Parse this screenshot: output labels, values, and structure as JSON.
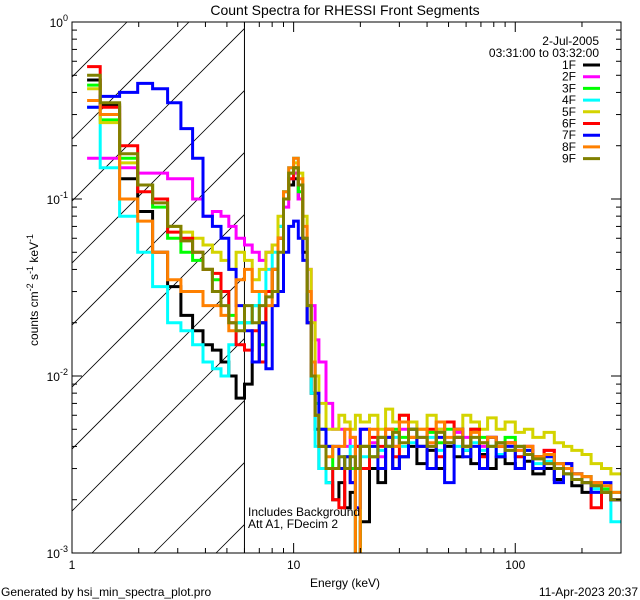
{
  "chart_data": {
    "type": "line",
    "title": "Count Spectra for RHESSI Front Segments",
    "xlabel": "Energy (keV)",
    "ylabel_parts": [
      "counts cm",
      "-2",
      " s",
      "-1",
      " keV",
      "-1"
    ],
    "xscale": "log",
    "yscale": "log",
    "xlim": [
      1,
      300
    ],
    "ylim": [
      0.001,
      1
    ],
    "x_tick_labels": [
      "1",
      "10",
      "100"
    ],
    "x_tick_values": [
      1,
      10,
      100
    ],
    "y_tick_values": [
      1,
      0.1,
      0.01,
      0.001
    ],
    "y_tick_labels": [
      {
        "base": "10",
        "exp": "0"
      },
      {
        "base": "10",
        "exp": "-1"
      },
      {
        "base": "10",
        "exp": "-2"
      },
      {
        "base": "10",
        "exp": "-3"
      }
    ],
    "date": "2-Jul-2005",
    "time_range": "03:31:00 to 03:32:00",
    "annotations": [
      "Includes Background",
      "Att A1, FDecim 2"
    ],
    "hatched_region_below_keV": 6,
    "legend_position": "top-right",
    "energy_edges": [
      1.17,
      1.34,
      1.64,
      1.98,
      2.31,
      2.7,
      3.1,
      3.5,
      3.9,
      4.3,
      4.7,
      5.1,
      5.5,
      6.0,
      6.5,
      7.0,
      7.5,
      8.0,
      8.5,
      9.0,
      9.5,
      10.0,
      10.5,
      11.0,
      11.5,
      12.0,
      12.5,
      13.0,
      14.0,
      15.0,
      16.0,
      17.0,
      18.0,
      19.0,
      20.0,
      22,
      24,
      26,
      28,
      30,
      33,
      36,
      40,
      44,
      48,
      53,
      58,
      63,
      69,
      75,
      82,
      90,
      100,
      110,
      120,
      135,
      150,
      165,
      180,
      200,
      220,
      245,
      270,
      300
    ],
    "series": [
      {
        "name": "1F",
        "color": "#000000",
        "values": [
          0.47,
          0.34,
          0.13,
          0.085,
          0.05,
          0.032,
          0.022,
          0.018,
          0.015,
          0.014,
          0.012,
          0.01,
          0.0075,
          0.009,
          0.012,
          0.02,
          0.03,
          0.04,
          0.06,
          0.1,
          0.12,
          0.13,
          0.1,
          0.05,
          0.02,
          0.008,
          0.005,
          0.003,
          0.0025,
          0.002,
          0.0025,
          0.0018,
          0.0022,
          0.0007,
          0.0015,
          0.003,
          0.0025,
          0.004,
          0.003,
          0.0035,
          0.004,
          0.0032,
          0.0038,
          0.003,
          0.004,
          0.0035,
          0.0038,
          0.0032,
          0.0036,
          0.003,
          0.0035,
          0.0032,
          0.003,
          0.0033,
          0.0028,
          0.003,
          0.0026,
          0.0028,
          0.0024,
          0.0022,
          0.0025,
          0.0022,
          0.002
        ]
      },
      {
        "name": "2F",
        "color": "#ff00ff",
        "values": [
          0.17,
          0.17,
          0.15,
          0.14,
          0.14,
          0.13,
          0.13,
          0.1,
          0.08,
          0.085,
          0.08,
          0.07,
          0.06,
          0.055,
          0.05,
          0.045,
          0.05,
          0.055,
          0.06,
          0.09,
          0.13,
          0.14,
          0.1,
          0.06,
          0.04,
          0.025,
          0.016,
          0.012,
          0.007,
          0.005,
          0.005,
          0.004,
          0.0045,
          0.004,
          0.005,
          0.0042,
          0.0035,
          0.0045,
          0.004,
          0.005,
          0.0055,
          0.0045,
          0.004,
          0.005,
          0.0042,
          0.0048,
          0.0045,
          0.005,
          0.004,
          0.0045,
          0.004,
          0.0042,
          0.0038,
          0.004,
          0.0035,
          0.0038,
          0.0032,
          0.003,
          0.0028,
          0.0027,
          0.0025,
          0.0022,
          0.002
        ]
      },
      {
        "name": "3F",
        "color": "#00ff00",
        "values": [
          0.44,
          0.28,
          0.17,
          0.12,
          0.09,
          0.06,
          0.05,
          0.045,
          0.04,
          0.035,
          0.03,
          0.022,
          0.02,
          0.02,
          0.025,
          0.015,
          0.03,
          0.04,
          0.07,
          0.11,
          0.14,
          0.15,
          0.11,
          0.06,
          0.025,
          0.012,
          0.007,
          0.005,
          0.004,
          0.003,
          0.003,
          0.0035,
          0.003,
          0.0007,
          0.004,
          0.0035,
          0.0045,
          0.004,
          0.005,
          0.0045,
          0.005,
          0.004,
          0.0048,
          0.0042,
          0.005,
          0.0045,
          0.004,
          0.005,
          0.0045,
          0.004,
          0.0042,
          0.0045,
          0.004,
          0.0038,
          0.0035,
          0.0036,
          0.0032,
          0.003,
          0.0028,
          0.0027,
          0.0024,
          0.0023,
          0.0022
        ]
      },
      {
        "name": "4F",
        "color": "#00ffff",
        "values": [
          0.33,
          0.15,
          0.08,
          0.05,
          0.032,
          0.02,
          0.018,
          0.015,
          0.012,
          0.011,
          0.01,
          0.015,
          0.02,
          0.02,
          0.025,
          0.03,
          0.04,
          0.05,
          0.07,
          0.11,
          0.15,
          0.17,
          0.12,
          0.06,
          0.02,
          0.008,
          0.004,
          0.003,
          0.0025,
          0.003,
          0.0035,
          0.003,
          0.004,
          0.003,
          0.0035,
          0.004,
          0.0038,
          0.004,
          0.0045,
          0.004,
          0.0042,
          0.004,
          0.0045,
          0.0038,
          0.0042,
          0.004,
          0.0038,
          0.0042,
          0.0038,
          0.004,
          0.0036,
          0.0038,
          0.0035,
          0.0036,
          0.0032,
          0.0033,
          0.003,
          0.0028,
          0.0026,
          0.0025,
          0.0023,
          0.0022,
          0.0015
        ]
      },
      {
        "name": "5F",
        "color": "#d4d400",
        "values": [
          0.42,
          0.27,
          0.16,
          0.12,
          0.1,
          0.07,
          0.065,
          0.06,
          0.055,
          0.05,
          0.045,
          0.04,
          0.05,
          0.045,
          0.035,
          0.04,
          0.05,
          0.055,
          0.08,
          0.1,
          0.14,
          0.16,
          0.14,
          0.08,
          0.04,
          0.02,
          0.01,
          0.007,
          0.005,
          0.005,
          0.006,
          0.0055,
          0.005,
          0.006,
          0.0055,
          0.006,
          0.005,
          0.0065,
          0.0055,
          0.006,
          0.0055,
          0.005,
          0.006,
          0.005,
          0.0055,
          0.005,
          0.006,
          0.0055,
          0.005,
          0.0058,
          0.005,
          0.0055,
          0.0048,
          0.005,
          0.0045,
          0.0048,
          0.0042,
          0.004,
          0.0038,
          0.0036,
          0.0032,
          0.003,
          0.0028
        ]
      },
      {
        "name": "6F",
        "color": "#ff0000",
        "values": [
          0.56,
          0.33,
          0.2,
          0.11,
          0.1,
          0.065,
          0.06,
          0.05,
          0.04,
          0.038,
          0.03,
          0.02,
          0.015,
          0.014,
          0.018,
          0.012,
          0.03,
          0.04,
          0.06,
          0.1,
          0.13,
          0.15,
          0.12,
          0.06,
          0.02,
          0.01,
          0.006,
          0.004,
          0.003,
          0.002,
          0.0018,
          0.003,
          0.0025,
          0.004,
          0.003,
          0.0045,
          0.004,
          0.005,
          0.0035,
          0.006,
          0.0045,
          0.004,
          0.005,
          0.0035,
          0.0055,
          0.0045,
          0.004,
          0.005,
          0.0035,
          0.0045,
          0.004,
          0.0042,
          0.0035,
          0.004,
          0.0035,
          0.0038,
          0.003,
          0.0032,
          0.0028,
          0.0025,
          0.0018,
          0.0022,
          0.002
        ]
      },
      {
        "name": "7F",
        "color": "#0000ff",
        "values": [
          0.33,
          0.38,
          0.4,
          0.45,
          0.42,
          0.35,
          0.25,
          0.17,
          0.08,
          0.07,
          0.06,
          0.04,
          0.025,
          0.018,
          0.012,
          0.02,
          0.011,
          0.025,
          0.03,
          0.05,
          0.07,
          0.075,
          0.06,
          0.045,
          0.02,
          0.012,
          0.008,
          0.005,
          0.004,
          0.004,
          0.003,
          0.0035,
          0.0025,
          0.0018,
          0.005,
          0.004,
          0.003,
          0.0045,
          0.003,
          0.0035,
          0.005,
          0.004,
          0.003,
          0.0045,
          0.0025,
          0.005,
          0.0035,
          0.004,
          0.003,
          0.0045,
          0.0035,
          0.004,
          0.003,
          0.0038,
          0.003,
          0.0035,
          0.0025,
          0.0032,
          0.0028,
          0.0025,
          0.0022,
          0.0025,
          0.002
        ]
      },
      {
        "name": "8F",
        "color": "#ff8000",
        "values": [
          0.36,
          0.3,
          0.1,
          0.075,
          0.05,
          0.035,
          0.03,
          0.03,
          0.025,
          0.025,
          0.022,
          0.018,
          0.035,
          0.04,
          0.03,
          0.03,
          0.025,
          0.04,
          0.06,
          0.11,
          0.15,
          0.17,
          0.13,
          0.07,
          0.03,
          0.012,
          0.006,
          0.004,
          0.0035,
          0.004,
          0.004,
          0.005,
          0.0045,
          0.0008,
          0.004,
          0.005,
          0.0045,
          0.005,
          0.004,
          0.0055,
          0.0045,
          0.005,
          0.0042,
          0.0055,
          0.0045,
          0.005,
          0.004,
          0.0048,
          0.0042,
          0.0045,
          0.004,
          0.0042,
          0.0038,
          0.004,
          0.0035,
          0.0036,
          0.0032,
          0.003,
          0.0028,
          0.0027,
          0.0025,
          0.0024,
          0.0022
        ]
      },
      {
        "name": "9F",
        "color": "#808000",
        "values": [
          0.5,
          0.35,
          0.18,
          0.12,
          0.095,
          0.07,
          0.058,
          0.05,
          0.04,
          0.03,
          0.025,
          0.02,
          0.018,
          0.025,
          0.02,
          0.025,
          0.028,
          0.03,
          0.05,
          0.1,
          0.14,
          0.15,
          0.12,
          0.06,
          0.025,
          0.01,
          0.006,
          0.004,
          0.003,
          0.003,
          0.0035,
          0.003,
          0.0035,
          0.003,
          0.004,
          0.0035,
          0.0045,
          0.004,
          0.0048,
          0.0042,
          0.005,
          0.0045,
          0.004,
          0.0048,
          0.0042,
          0.0045,
          0.004,
          0.0045,
          0.0042,
          0.004,
          0.0042,
          0.0038,
          0.004,
          0.0036,
          0.0034,
          0.0032,
          0.003,
          0.0028,
          0.0026,
          0.0025,
          0.0024,
          0.0022,
          0.002
        ]
      }
    ]
  },
  "footer": {
    "generated_by": "Generated by hsi_min_spectra_plot.pro",
    "timestamp": "11-Apr-2023 20:37"
  }
}
